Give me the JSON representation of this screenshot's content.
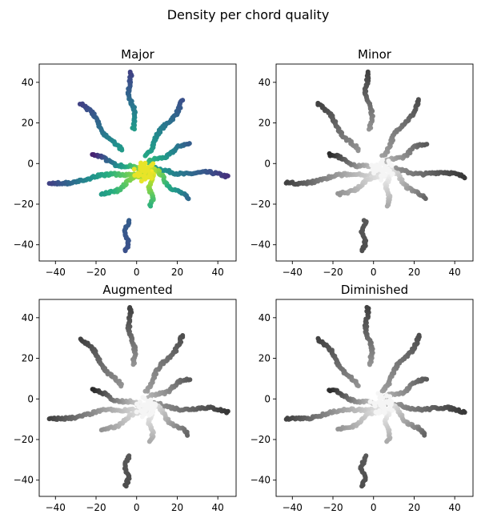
{
  "figure": {
    "suptitle": "Density per chord quality"
  },
  "chart_data": [
    {
      "type": "scatter",
      "title": "Major",
      "colormap": "viridis",
      "xlim": [
        -48,
        49
      ],
      "ylim": [
        -48,
        49
      ],
      "xticks": [
        -40,
        -20,
        0,
        20,
        40
      ],
      "yticks": [
        -40,
        -20,
        0,
        20,
        40
      ],
      "tick_labels": [
        "−40",
        "−20",
        "0",
        "20",
        "40"
      ],
      "arms": [
        {
          "from": [
            -1,
            17
          ],
          "to": [
            -4,
            45
          ],
          "density": [
            0.55,
            0.2
          ]
        },
        {
          "from": [
            -8,
            6
          ],
          "to": [
            -27,
            30
          ],
          "density": [
            0.55,
            0.2
          ]
        },
        {
          "from": [
            4,
            4
          ],
          "to": [
            23,
            31
          ],
          "density": [
            0.6,
            0.25
          ]
        },
        {
          "from": [
            6,
            0
          ],
          "to": [
            26,
            10
          ],
          "density": [
            0.7,
            0.3
          ]
        },
        {
          "from": [
            3,
            -4
          ],
          "to": [
            -22,
            4
          ],
          "density": [
            0.9,
            0.1
          ]
        },
        {
          "from": [
            6,
            -3
          ],
          "to": [
            45,
            -6
          ],
          "density": [
            0.6,
            0.15
          ]
        },
        {
          "from": [
            3,
            -4
          ],
          "to": [
            -43,
            -10
          ],
          "density": [
            0.9,
            0.2
          ]
        },
        {
          "from": [
            7,
            -2
          ],
          "to": [
            25,
            -18
          ],
          "density": [
            0.95,
            0.35
          ]
        },
        {
          "from": [
            5,
            -5
          ],
          "to": [
            -17,
            -16
          ],
          "density": [
            0.95,
            0.55
          ]
        },
        {
          "from": [
            7,
            -4
          ],
          "to": [
            7,
            -21
          ],
          "density": [
            1.0,
            0.65
          ]
        },
        {
          "from": [
            -5,
            -28
          ],
          "to": [
            -5,
            -43
          ],
          "density": [
            0.3,
            0.25
          ]
        }
      ]
    },
    {
      "type": "scatter",
      "title": "Minor",
      "colormap": "greys",
      "xlim": [
        -48,
        49
      ],
      "ylim": [
        -48,
        49
      ],
      "xticks": [
        -40,
        -20,
        0,
        20,
        40
      ],
      "yticks": [
        -40,
        -20,
        0,
        20,
        40
      ],
      "tick_labels": [
        "−40",
        "−20",
        "0",
        "20",
        "40"
      ],
      "arms": [
        {
          "from": [
            -1,
            17
          ],
          "to": [
            -4,
            45
          ],
          "density": [
            0.55,
            0.2
          ]
        },
        {
          "from": [
            -8,
            6
          ],
          "to": [
            -27,
            30
          ],
          "density": [
            0.55,
            0.2
          ]
        },
        {
          "from": [
            4,
            4
          ],
          "to": [
            23,
            31
          ],
          "density": [
            0.6,
            0.25
          ]
        },
        {
          "from": [
            6,
            0
          ],
          "to": [
            26,
            10
          ],
          "density": [
            0.7,
            0.3
          ]
        },
        {
          "from": [
            3,
            -4
          ],
          "to": [
            -22,
            4
          ],
          "density": [
            0.9,
            0.1
          ]
        },
        {
          "from": [
            6,
            -3
          ],
          "to": [
            45,
            -6
          ],
          "density": [
            0.6,
            0.15
          ]
        },
        {
          "from": [
            3,
            -4
          ],
          "to": [
            -43,
            -10
          ],
          "density": [
            0.9,
            0.2
          ]
        },
        {
          "from": [
            7,
            -2
          ],
          "to": [
            25,
            -18
          ],
          "density": [
            0.95,
            0.35
          ]
        },
        {
          "from": [
            5,
            -5
          ],
          "to": [
            -17,
            -16
          ],
          "density": [
            0.95,
            0.55
          ]
        },
        {
          "from": [
            7,
            -4
          ],
          "to": [
            7,
            -21
          ],
          "density": [
            1.0,
            0.65
          ]
        },
        {
          "from": [
            -5,
            -28
          ],
          "to": [
            -5,
            -43
          ],
          "density": [
            0.3,
            0.25
          ]
        }
      ]
    },
    {
      "type": "scatter",
      "title": "Augmented",
      "colormap": "greys",
      "xlim": [
        -48,
        49
      ],
      "ylim": [
        -48,
        49
      ],
      "xticks": [
        -40,
        -20,
        0,
        20,
        40
      ],
      "yticks": [
        -40,
        -20,
        0,
        20,
        40
      ],
      "tick_labels": [
        "−40",
        "−20",
        "0",
        "20",
        "40"
      ],
      "arms": [
        {
          "from": [
            -1,
            17
          ],
          "to": [
            -4,
            45
          ],
          "density": [
            0.55,
            0.2
          ]
        },
        {
          "from": [
            -8,
            6
          ],
          "to": [
            -27,
            30
          ],
          "density": [
            0.55,
            0.2
          ]
        },
        {
          "from": [
            4,
            4
          ],
          "to": [
            23,
            31
          ],
          "density": [
            0.6,
            0.25
          ]
        },
        {
          "from": [
            6,
            0
          ],
          "to": [
            26,
            10
          ],
          "density": [
            0.7,
            0.3
          ]
        },
        {
          "from": [
            3,
            -4
          ],
          "to": [
            -22,
            4
          ],
          "density": [
            0.9,
            0.1
          ]
        },
        {
          "from": [
            6,
            -3
          ],
          "to": [
            45,
            -6
          ],
          "density": [
            0.6,
            0.15
          ]
        },
        {
          "from": [
            3,
            -4
          ],
          "to": [
            -43,
            -10
          ],
          "density": [
            0.9,
            0.2
          ]
        },
        {
          "from": [
            7,
            -2
          ],
          "to": [
            25,
            -18
          ],
          "density": [
            0.95,
            0.35
          ]
        },
        {
          "from": [
            5,
            -5
          ],
          "to": [
            -17,
            -16
          ],
          "density": [
            0.95,
            0.55
          ]
        },
        {
          "from": [
            7,
            -4
          ],
          "to": [
            7,
            -21
          ],
          "density": [
            1.0,
            0.65
          ]
        },
        {
          "from": [
            -5,
            -28
          ],
          "to": [
            -5,
            -43
          ],
          "density": [
            0.3,
            0.25
          ]
        }
      ]
    },
    {
      "type": "scatter",
      "title": "Diminished",
      "colormap": "greys",
      "xlim": [
        -48,
        49
      ],
      "ylim": [
        -48,
        49
      ],
      "xticks": [
        -40,
        -20,
        0,
        20,
        40
      ],
      "yticks": [
        -40,
        -20,
        0,
        20,
        40
      ],
      "tick_labels": [
        "−40",
        "−20",
        "0",
        "20",
        "40"
      ],
      "arms": [
        {
          "from": [
            -1,
            17
          ],
          "to": [
            -4,
            45
          ],
          "density": [
            0.55,
            0.2
          ]
        },
        {
          "from": [
            -8,
            6
          ],
          "to": [
            -27,
            30
          ],
          "density": [
            0.55,
            0.2
          ]
        },
        {
          "from": [
            4,
            4
          ],
          "to": [
            23,
            31
          ],
          "density": [
            0.6,
            0.25
          ]
        },
        {
          "from": [
            6,
            0
          ],
          "to": [
            26,
            10
          ],
          "density": [
            0.7,
            0.3
          ]
        },
        {
          "from": [
            3,
            -4
          ],
          "to": [
            -22,
            4
          ],
          "density": [
            0.9,
            0.1
          ]
        },
        {
          "from": [
            6,
            -3
          ],
          "to": [
            45,
            -6
          ],
          "density": [
            0.6,
            0.15
          ]
        },
        {
          "from": [
            3,
            -4
          ],
          "to": [
            -43,
            -10
          ],
          "density": [
            0.9,
            0.2
          ]
        },
        {
          "from": [
            7,
            -2
          ],
          "to": [
            25,
            -18
          ],
          "density": [
            0.95,
            0.35
          ]
        },
        {
          "from": [
            5,
            -5
          ],
          "to": [
            -17,
            -16
          ],
          "density": [
            0.95,
            0.55
          ]
        },
        {
          "from": [
            7,
            -4
          ],
          "to": [
            7,
            -21
          ],
          "density": [
            1.0,
            0.65
          ]
        },
        {
          "from": [
            -5,
            -28
          ],
          "to": [
            -5,
            -43
          ],
          "density": [
            0.3,
            0.25
          ]
        }
      ]
    }
  ]
}
